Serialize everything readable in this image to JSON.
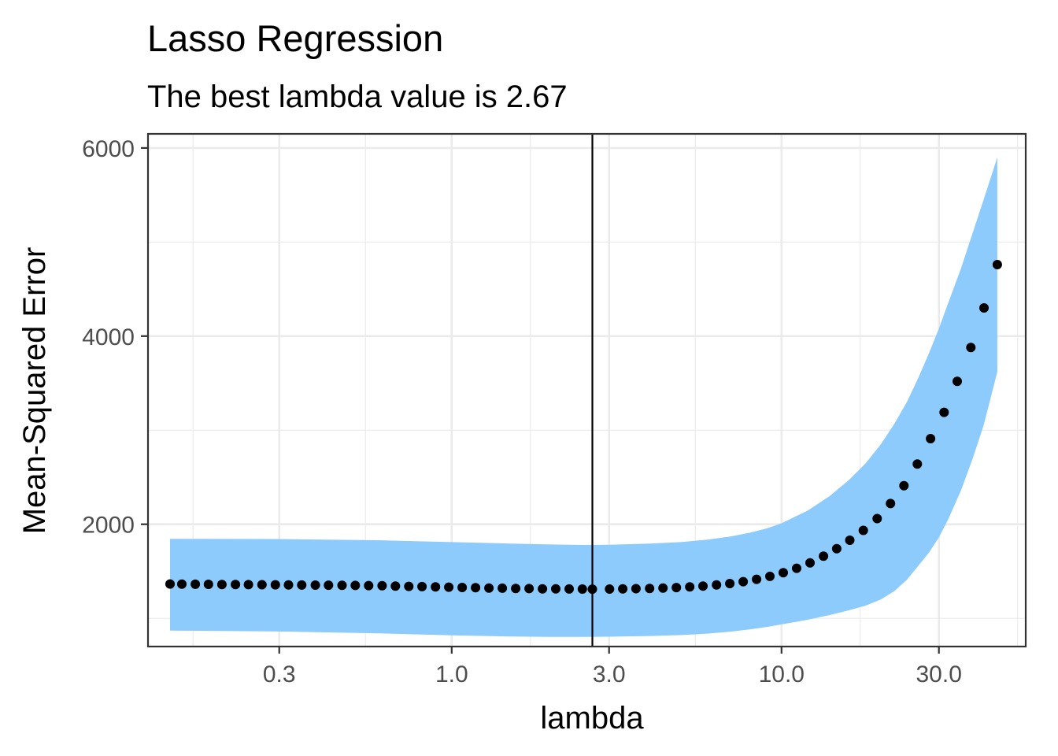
{
  "chart_data": {
    "type": "scatter",
    "title": "Lasso Regression",
    "subtitle": "The best lambda value is 2.67",
    "xlabel": "lambda",
    "ylabel": "Mean-Squared Error",
    "x_scale": "log10",
    "xlim": [
      0.12,
      55
    ],
    "ylim": [
      700,
      6150
    ],
    "x_ticks": [
      0.3,
      1.0,
      3.0,
      10.0,
      30.0
    ],
    "x_tick_labels": [
      "0.3",
      "1.0",
      "3.0",
      "10.0",
      "30.0"
    ],
    "y_ticks": [
      2000,
      4000,
      6000
    ],
    "y_tick_labels": [
      "2000",
      "4000",
      "6000"
    ],
    "grid": true,
    "best_lambda": 2.67,
    "colors": {
      "ribbon": "#8ccbfc",
      "points": "#000000",
      "vline": "#000000",
      "grid": "#ebebeb",
      "panel_border": "#333333"
    },
    "series": [
      {
        "values": [
          [
            0.14,
            1365
          ],
          [
            0.152,
            1363
          ],
          [
            0.167,
            1362
          ],
          [
            0.183,
            1361
          ],
          [
            0.201,
            1360
          ],
          [
            0.221,
            1359
          ],
          [
            0.242,
            1358
          ],
          [
            0.266,
            1357
          ],
          [
            0.292,
            1356
          ],
          [
            0.32,
            1355
          ],
          [
            0.351,
            1354
          ],
          [
            0.386,
            1353
          ],
          [
            0.423,
            1352
          ],
          [
            0.465,
            1351
          ],
          [
            0.51,
            1350
          ],
          [
            0.56,
            1348
          ],
          [
            0.615,
            1346
          ],
          [
            0.675,
            1343
          ],
          [
            0.741,
            1340
          ],
          [
            0.813,
            1337
          ],
          [
            0.893,
            1334
          ],
          [
            0.98,
            1331
          ],
          [
            1.076,
            1328
          ],
          [
            1.181,
            1325
          ],
          [
            1.297,
            1322
          ],
          [
            1.424,
            1320
          ],
          [
            1.563,
            1318
          ],
          [
            1.716,
            1316
          ],
          [
            1.884,
            1314
          ],
          [
            2.068,
            1313
          ],
          [
            2.27,
            1312
          ],
          [
            2.49,
            1311
          ],
          [
            2.67,
            1310
          ],
          [
            3.01,
            1311
          ],
          [
            3.3,
            1313
          ],
          [
            3.62,
            1315
          ],
          [
            3.98,
            1318
          ],
          [
            4.37,
            1322
          ],
          [
            4.8,
            1327
          ],
          [
            5.27,
            1334
          ],
          [
            5.78,
            1343
          ],
          [
            6.35,
            1355
          ],
          [
            6.97,
            1370
          ],
          [
            7.65,
            1390
          ],
          [
            8.4,
            1415
          ],
          [
            9.22,
            1446
          ],
          [
            10.12,
            1485
          ],
          [
            11.11,
            1532
          ],
          [
            12.2,
            1590
          ],
          [
            13.4,
            1660
          ],
          [
            14.7,
            1740
          ],
          [
            16.1,
            1830
          ],
          [
            17.7,
            1935
          ],
          [
            19.5,
            2060
          ],
          [
            21.4,
            2220
          ],
          [
            23.5,
            2410
          ],
          [
            25.8,
            2640
          ],
          [
            28.3,
            2910
          ],
          [
            31.1,
            3190
          ],
          [
            34.1,
            3520
          ],
          [
            37.5,
            3880
          ],
          [
            41.1,
            4300
          ],
          [
            45.1,
            4760
          ]
        ]
      }
    ],
    "ribbon": [
      [
        0.14,
        870,
        1845
      ],
      [
        0.3,
        860,
        1843
      ],
      [
        0.6,
        840,
        1830
      ],
      [
        1.0,
        820,
        1810
      ],
      [
        1.5,
        806,
        1795
      ],
      [
        2.0,
        803,
        1785
      ],
      [
        2.5,
        803,
        1780
      ],
      [
        3.0,
        805,
        1782
      ],
      [
        4.0,
        812,
        1795
      ],
      [
        5.0,
        822,
        1812
      ],
      [
        6.0,
        838,
        1838
      ],
      [
        7.0,
        858,
        1870
      ],
      [
        8.0,
        882,
        1910
      ],
      [
        9.0,
        908,
        1955
      ],
      [
        10.0,
        935,
        2010
      ],
      [
        12.0,
        985,
        2145
      ],
      [
        14.0,
        1035,
        2300
      ],
      [
        16.0,
        1085,
        2470
      ],
      [
        18.0,
        1135,
        2650
      ],
      [
        20.0,
        1200,
        2850
      ],
      [
        22.0,
        1290,
        3070
      ],
      [
        24.0,
        1410,
        3300
      ],
      [
        26.0,
        1560,
        3560
      ],
      [
        28.0,
        1700,
        3820
      ],
      [
        30.0,
        1860,
        4080
      ],
      [
        32.0,
        2050,
        4350
      ],
      [
        35.0,
        2360,
        4720
      ],
      [
        38.0,
        2700,
        5100
      ],
      [
        41.0,
        3050,
        5450
      ],
      [
        45.1,
        3620,
        5900
      ]
    ]
  }
}
